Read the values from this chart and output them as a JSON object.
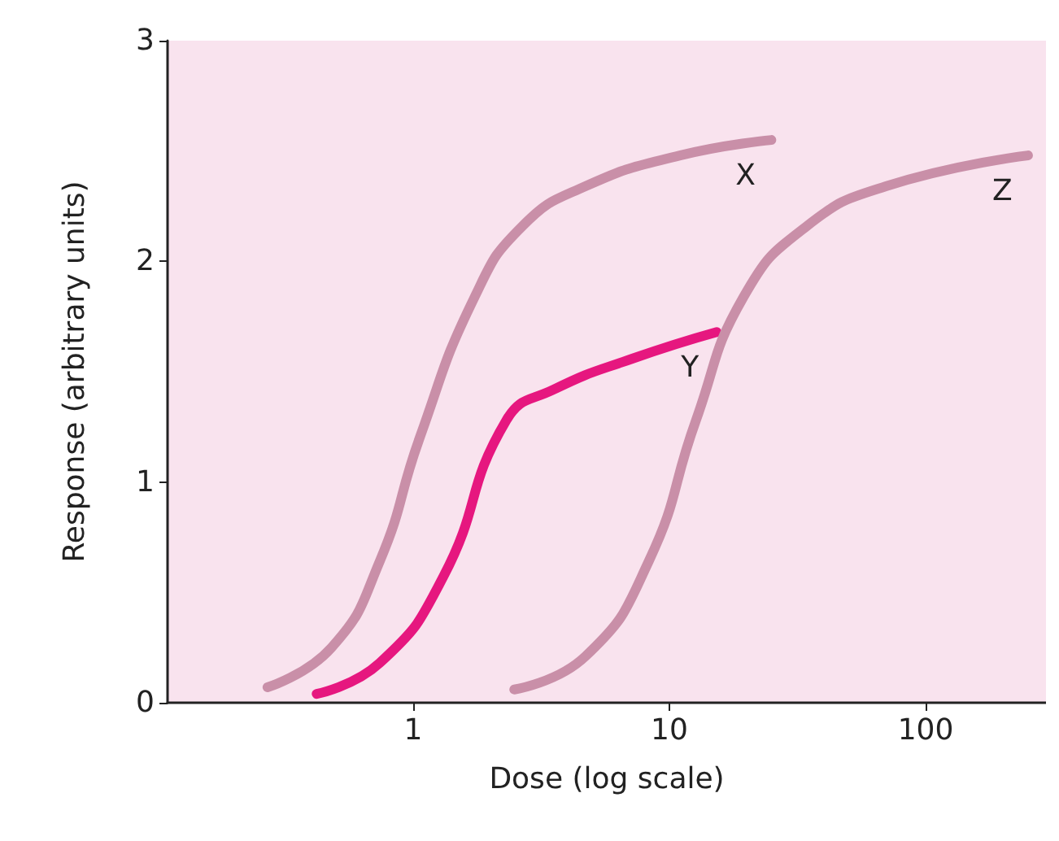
{
  "chart_data": {
    "type": "line",
    "xlabel": "Dose (log scale)",
    "ylabel": "Response (arbitrary units)",
    "log": "x",
    "xlim": [
      0.11,
      295
    ],
    "xticks": [
      1,
      10,
      100
    ],
    "ylim": [
      0,
      3
    ],
    "yticks": [
      0,
      1,
      2,
      3
    ],
    "grid": false,
    "legend": false,
    "marker": "none",
    "line_style": "solid",
    "series": [
      {
        "name": "X",
        "color": "#c98fa8",
        "x": [
          0.27,
          0.48,
          0.74,
          1.06,
          1.74,
          2.67,
          4.7,
          11,
          25
        ],
        "values": [
          0.07,
          0.25,
          0.64,
          1.2,
          1.84,
          2.16,
          2.34,
          2.48,
          2.55
        ]
      },
      {
        "name": "Y",
        "color": "#e6177f",
        "x": [
          0.42,
          0.74,
          1.31,
          2.31,
          3.55,
          7.2,
          15.3
        ],
        "values": [
          0.04,
          0.18,
          0.57,
          1.28,
          1.42,
          1.56,
          1.68
        ]
      },
      {
        "name": "Z",
        "color": "#c98fa8",
        "x": [
          2.48,
          4.7,
          8.3,
          12.7,
          19.5,
          34.4,
          70,
          251
        ],
        "values": [
          0.06,
          0.21,
          0.64,
          1.28,
          1.84,
          2.16,
          2.34,
          2.48
        ]
      }
    ]
  }
}
